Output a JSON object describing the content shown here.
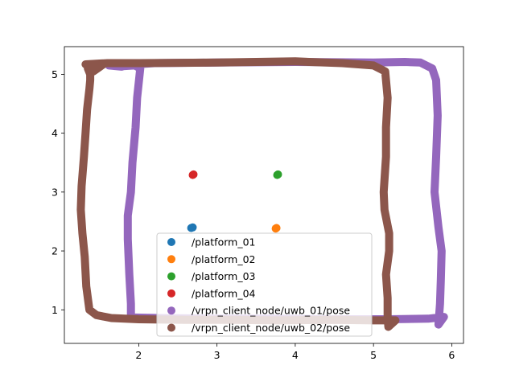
{
  "chart_data": {
    "type": "scatter",
    "xlim": [
      1.05,
      6.15
    ],
    "ylim": [
      0.43,
      5.47
    ],
    "xticks": [
      2,
      3,
      4,
      5,
      6
    ],
    "yticks": [
      1,
      2,
      3,
      4,
      5
    ],
    "grid": false,
    "legend_position": "lower center",
    "series": [
      {
        "name": "/platform_01",
        "color": "#1f77b4",
        "points": [
          [
            2.69,
            2.4
          ],
          [
            2.67,
            2.39
          ]
        ]
      },
      {
        "name": "/platform_02",
        "color": "#ff7f0e",
        "points": [
          [
            3.76,
            2.39
          ],
          [
            3.75,
            2.38
          ]
        ]
      },
      {
        "name": "/platform_03",
        "color": "#2ca02c",
        "points": [
          [
            3.78,
            3.3
          ],
          [
            3.77,
            3.29
          ]
        ]
      },
      {
        "name": "/platform_04",
        "color": "#d62728",
        "points": [
          [
            2.7,
            3.3
          ],
          [
            2.69,
            3.29
          ]
        ]
      },
      {
        "name": "/vrpn_client_node/uwb_01/pose",
        "color": "#9467bd",
        "path": [
          [
            1.62,
            5.15
          ],
          [
            1.78,
            5.13
          ],
          [
            1.86,
            5.16
          ],
          [
            2.2,
            5.19
          ],
          [
            3.0,
            5.2
          ],
          [
            4.0,
            5.21
          ],
          [
            5.0,
            5.2
          ],
          [
            5.4,
            5.21
          ],
          [
            5.6,
            5.2
          ],
          [
            5.75,
            5.1
          ],
          [
            5.8,
            4.9
          ],
          [
            5.82,
            4.3
          ],
          [
            5.8,
            3.6
          ],
          [
            5.78,
            3.0
          ],
          [
            5.83,
            2.4
          ],
          [
            5.87,
            2.0
          ],
          [
            5.86,
            1.5
          ],
          [
            5.85,
            1.1
          ],
          [
            5.83,
            0.75
          ],
          [
            5.9,
            0.88
          ],
          [
            5.7,
            0.85
          ],
          [
            5.2,
            0.84
          ],
          [
            4.5,
            0.84
          ],
          [
            3.8,
            0.85
          ],
          [
            3.0,
            0.85
          ],
          [
            2.3,
            0.86
          ],
          [
            1.9,
            0.87
          ],
          [
            1.9,
            1.1
          ],
          [
            1.88,
            1.6
          ],
          [
            1.86,
            2.2
          ],
          [
            1.86,
            2.6
          ],
          [
            1.9,
            3.0
          ],
          [
            1.92,
            3.5
          ],
          [
            1.96,
            4.1
          ],
          [
            1.98,
            4.6
          ],
          [
            2.02,
            5.1
          ],
          [
            1.95,
            5.15
          ],
          [
            1.8,
            5.14
          ],
          [
            1.64,
            5.16
          ]
        ]
      },
      {
        "name": "/vrpn_client_node/uwb_02/pose",
        "color": "#8c564b",
        "path": [
          [
            1.32,
            5.17
          ],
          [
            1.6,
            5.19
          ],
          [
            2.0,
            5.19
          ],
          [
            3.0,
            5.2
          ],
          [
            4.0,
            5.22
          ],
          [
            4.6,
            5.19
          ],
          [
            5.0,
            5.15
          ],
          [
            5.15,
            5.05
          ],
          [
            5.18,
            4.6
          ],
          [
            5.16,
            4.1
          ],
          [
            5.16,
            3.6
          ],
          [
            5.13,
            3.0
          ],
          [
            5.14,
            2.7
          ],
          [
            5.2,
            2.3
          ],
          [
            5.2,
            2.0
          ],
          [
            5.16,
            1.6
          ],
          [
            5.18,
            1.2
          ],
          [
            5.18,
            0.9
          ],
          [
            5.19,
            0.71
          ],
          [
            5.28,
            0.82
          ],
          [
            5.0,
            0.82
          ],
          [
            4.5,
            0.83
          ],
          [
            3.8,
            0.82
          ],
          [
            3.2,
            0.83
          ],
          [
            2.6,
            0.83
          ],
          [
            2.0,
            0.84
          ],
          [
            1.65,
            0.86
          ],
          [
            1.46,
            0.91
          ],
          [
            1.37,
            1.0
          ],
          [
            1.33,
            1.4
          ],
          [
            1.31,
            1.9
          ],
          [
            1.28,
            2.3
          ],
          [
            1.26,
            2.7
          ],
          [
            1.27,
            3.1
          ],
          [
            1.3,
            3.6
          ],
          [
            1.32,
            4.0
          ],
          [
            1.34,
            4.4
          ],
          [
            1.37,
            4.75
          ],
          [
            1.38,
            4.9
          ],
          [
            1.38,
            5.0
          ],
          [
            1.35,
            5.1
          ],
          [
            1.45,
            5.17
          ],
          [
            1.56,
            5.18
          ],
          [
            1.42,
            5.05
          ]
        ]
      }
    ]
  }
}
